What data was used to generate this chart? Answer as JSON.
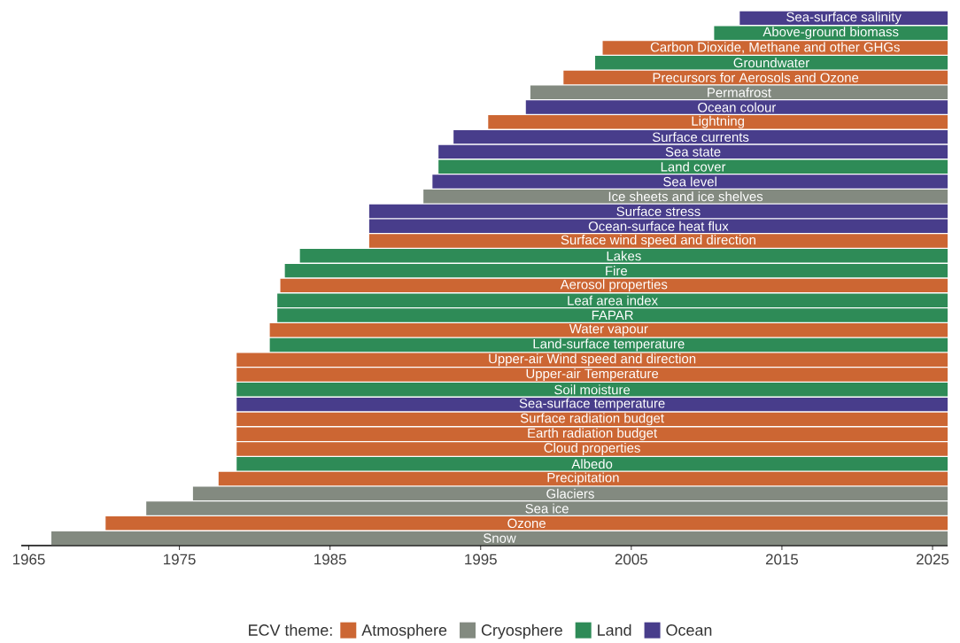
{
  "chart_data": {
    "type": "bar",
    "orientation": "horizontal",
    "legend_title": "ECV theme:",
    "legend": "bottom",
    "categories": [
      "Sea-surface salinity",
      "Above-ground biomass",
      "Carbon Dioxide, Methane and other GHGs",
      "Groundwater",
      "Precursors for Aerosols and Ozone",
      "Permafrost",
      "Ocean colour",
      "Lightning",
      "Surface currents",
      "Sea state",
      "Land cover",
      "Sea level",
      "Ice sheets and ice shelves",
      "Surface stress",
      "Ocean-surface heat flux",
      "Surface wind speed and direction",
      "Lakes",
      "Fire",
      "Aerosol properties",
      "Leaf area index",
      "FAPAR",
      "Water vapour",
      "Land-surface temperature",
      "Upper-air Wind speed and direction",
      "Upper-air Temperature",
      "Soil moisture",
      "Sea-surface temperature",
      "Surface radiation budget",
      "Earth radiation budget",
      "Cloud properties",
      "Albedo",
      "Precipitation",
      "Glaciers",
      "Sea ice",
      "Ozone",
      "Snow"
    ],
    "series": [
      {
        "name": "Atmosphere",
        "color": "#cc6633",
        "base": [
          null,
          null,
          2003.1,
          null,
          2000.5,
          null,
          null,
          1995.5,
          null,
          null,
          null,
          null,
          null,
          null,
          null,
          1987.6,
          null,
          null,
          1981.7,
          null,
          null,
          1981.0,
          null,
          1978.8,
          1978.8,
          null,
          null,
          1978.8,
          1978.8,
          1978.8,
          null,
          1977.6,
          null,
          null,
          1970.1,
          null
        ],
        "values": [
          null,
          null,
          22.9,
          null,
          25.5,
          null,
          null,
          30.5,
          null,
          null,
          null,
          null,
          null,
          null,
          null,
          38.4,
          null,
          null,
          44.3,
          null,
          null,
          45.0,
          null,
          47.2,
          47.2,
          null,
          null,
          47.2,
          47.2,
          47.2,
          null,
          48.4,
          null,
          null,
          55.9,
          null
        ]
      },
      {
        "name": "Cryosphere",
        "color": "#838a80",
        "base": [
          null,
          null,
          null,
          null,
          null,
          1998.3,
          null,
          null,
          null,
          null,
          null,
          null,
          1991.2,
          null,
          null,
          null,
          null,
          null,
          null,
          null,
          null,
          null,
          null,
          null,
          null,
          null,
          null,
          null,
          null,
          null,
          null,
          null,
          1975.9,
          1972.8,
          null,
          1966.5
        ],
        "values": [
          null,
          null,
          null,
          null,
          null,
          27.7,
          null,
          null,
          null,
          null,
          null,
          null,
          34.8,
          null,
          null,
          null,
          null,
          null,
          null,
          null,
          null,
          null,
          null,
          null,
          null,
          null,
          null,
          null,
          null,
          null,
          null,
          null,
          50.1,
          53.2,
          null,
          59.5
        ]
      },
      {
        "name": "Land",
        "color": "#2e8b57",
        "base": [
          null,
          2010.5,
          null,
          2002.6,
          null,
          null,
          null,
          null,
          null,
          null,
          1992.2,
          null,
          null,
          null,
          null,
          null,
          1983.0,
          1982.0,
          null,
          1981.5,
          1981.5,
          null,
          1981.0,
          null,
          null,
          1978.8,
          null,
          null,
          null,
          null,
          1978.8,
          null,
          null,
          null,
          null,
          null
        ],
        "values": [
          null,
          15.5,
          null,
          23.4,
          null,
          null,
          null,
          null,
          null,
          null,
          33.8,
          null,
          null,
          null,
          null,
          null,
          43.0,
          44.0,
          null,
          44.5,
          44.5,
          null,
          45.0,
          null,
          null,
          47.2,
          null,
          null,
          null,
          null,
          47.2,
          null,
          null,
          null,
          null,
          null
        ]
      },
      {
        "name": "Ocean",
        "color": "#483d8b",
        "base": [
          2012.2,
          null,
          null,
          null,
          null,
          null,
          1998.0,
          null,
          1993.2,
          1992.2,
          null,
          1991.8,
          null,
          1987.6,
          1987.6,
          null,
          null,
          null,
          null,
          null,
          null,
          null,
          null,
          null,
          null,
          null,
          1978.8,
          null,
          null,
          null,
          null,
          null,
          null,
          null,
          null,
          null
        ],
        "values": [
          13.8,
          null,
          null,
          null,
          null,
          null,
          28.0,
          null,
          32.8,
          33.8,
          null,
          34.2,
          null,
          38.4,
          38.4,
          null,
          null,
          null,
          null,
          null,
          null,
          null,
          null,
          null,
          null,
          null,
          47.2,
          null,
          null,
          null,
          null,
          null,
          null,
          null,
          null,
          null
        ]
      }
    ],
    "xlim": [
      1964.5,
      2026
    ],
    "xticks": [
      1965,
      1975,
      1985,
      1995,
      2005,
      2015,
      2025
    ]
  }
}
